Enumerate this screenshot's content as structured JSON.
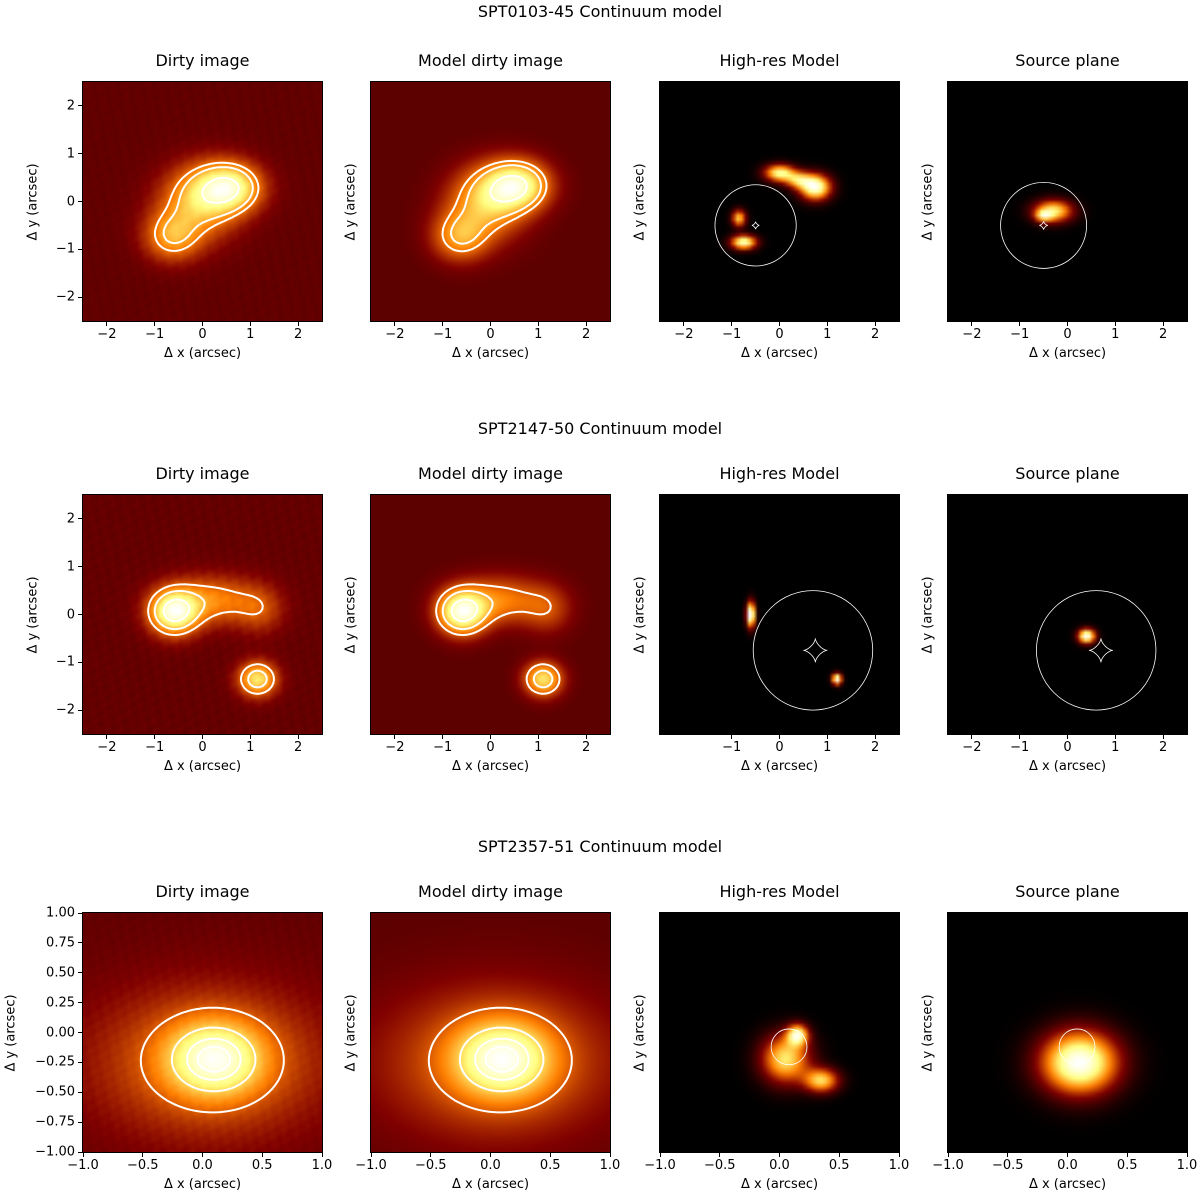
{
  "chart_data": [
    {
      "type": "heatmap",
      "title": "SPT0103-45 Continuum model",
      "panels": [
        {
          "title": "Dirty image",
          "xlabel": "Δ x (arcsec)",
          "ylabel": "Δ y (arcsec)",
          "xlim": [
            -2.5,
            2.5
          ],
          "ylim": [
            -2.5,
            2.5
          ],
          "xticks": [
            -2,
            -1,
            0,
            1,
            2
          ],
          "yticks": [
            -2,
            -1,
            0,
            1,
            2
          ],
          "blobs": [
            {
              "x": 0.6,
              "y": 0.3,
              "sx": 0.45,
              "sy": 0.35,
              "amp": 1.0
            },
            {
              "x": 0.05,
              "y": 0.2,
              "sx": 0.55,
              "sy": 0.45,
              "amp": 0.65
            },
            {
              "x": -0.65,
              "y": -0.75,
              "sx": 0.4,
              "sy": 0.35,
              "amp": 0.6
            },
            {
              "x": -0.2,
              "y": -0.3,
              "sx": 0.6,
              "sy": 0.5,
              "amp": 0.4
            }
          ],
          "contour_levels": [
            0.35,
            0.48,
            0.82
          ],
          "noise": true
        },
        {
          "title": "Model dirty image",
          "xlabel": "Δ x (arcsec)",
          "ylabel": "Δ y (arcsec)",
          "xlim": [
            -2.5,
            2.5
          ],
          "ylim": [
            -2.5,
            2.5
          ],
          "xticks": [
            -2,
            -1,
            0,
            1,
            2
          ],
          "yticks": [],
          "blobs": [
            {
              "x": 0.6,
              "y": 0.35,
              "sx": 0.45,
              "sy": 0.35,
              "amp": 1.0
            },
            {
              "x": 0.05,
              "y": 0.2,
              "sx": 0.55,
              "sy": 0.45,
              "amp": 0.65
            },
            {
              "x": -0.65,
              "y": -0.75,
              "sx": 0.4,
              "sy": 0.35,
              "amp": 0.6
            },
            {
              "x": -0.2,
              "y": -0.3,
              "sx": 0.6,
              "sy": 0.5,
              "amp": 0.4
            }
          ],
          "contour_levels": [
            0.35,
            0.48,
            0.82
          ],
          "noise": false
        },
        {
          "title": "High-res Model",
          "xlabel": "Δ x (arcsec)",
          "ylabel": "Δ y (arcsec)",
          "xlim": [
            -2.5,
            2.5
          ],
          "ylim": [
            -2.5,
            2.5
          ],
          "xticks": [
            -2,
            -1,
            0,
            1,
            2
          ],
          "yticks": [],
          "blobs": [
            {
              "x": 0.75,
              "y": 0.3,
              "sx": 0.22,
              "sy": 0.18,
              "amp": 1.0
            },
            {
              "x": 0.0,
              "y": 0.6,
              "sx": 0.22,
              "sy": 0.12,
              "amp": 0.85
            },
            {
              "x": 0.4,
              "y": 0.45,
              "sx": 0.2,
              "sy": 0.12,
              "amp": 0.6
            },
            {
              "x": -0.75,
              "y": -0.85,
              "sx": 0.18,
              "sy": 0.1,
              "amp": 0.95
            },
            {
              "x": -0.85,
              "y": -0.35,
              "sx": 0.1,
              "sy": 0.12,
              "amp": 0.7
            }
          ],
          "caustic": {
            "cx": -0.5,
            "cy": -0.5,
            "r": 0.85
          },
          "astroid": {
            "cx": -0.5,
            "cy": -0.5,
            "a": 0.08
          },
          "contour_levels": []
        },
        {
          "title": "Source plane",
          "xlabel": "Δ x (arcsec)",
          "ylabel": "Δ y (arcsec)",
          "xlim": [
            -2.5,
            2.5
          ],
          "ylim": [
            -2.5,
            2.5
          ],
          "xticks": [
            -2,
            -1,
            0,
            1,
            2
          ],
          "yticks": [],
          "blobs": [
            {
              "x": -0.3,
              "y": -0.2,
              "sx": 0.28,
              "sy": 0.16,
              "amp": 0.75
            },
            {
              "x": -0.5,
              "y": -0.3,
              "sx": 0.12,
              "sy": 0.08,
              "amp": 0.5
            }
          ],
          "caustic": {
            "cx": -0.5,
            "cy": -0.5,
            "r": 0.9
          },
          "astroid": {
            "cx": -0.5,
            "cy": -0.5,
            "a": 0.09
          },
          "contour_levels": []
        }
      ]
    },
    {
      "type": "heatmap",
      "title": "SPT2147-50 Continuum model",
      "panels": [
        {
          "title": "Dirty image",
          "xlabel": "Δ x (arcsec)",
          "ylabel": "Δ y (arcsec)",
          "xlim": [
            -2.5,
            2.5
          ],
          "ylim": [
            -2.5,
            2.5
          ],
          "xticks": [
            -2,
            -1,
            0,
            1,
            2
          ],
          "yticks": [
            -2,
            -1,
            0,
            1,
            2
          ],
          "blobs": [
            {
              "x": -0.6,
              "y": 0.05,
              "sx": 0.35,
              "sy": 0.32,
              "amp": 1.0
            },
            {
              "x": 0.2,
              "y": 0.3,
              "sx": 0.65,
              "sy": 0.35,
              "amp": 0.45
            },
            {
              "x": 1.2,
              "y": 0.1,
              "sx": 0.35,
              "sy": 0.35,
              "amp": 0.25
            },
            {
              "x": 1.15,
              "y": -1.35,
              "sx": 0.28,
              "sy": 0.25,
              "amp": 0.75
            }
          ],
          "contour_levels": [
            0.3,
            0.5,
            0.8
          ],
          "noise": true
        },
        {
          "title": "Model dirty image",
          "xlabel": "Δ x (arcsec)",
          "ylabel": "Δ y (arcsec)",
          "xlim": [
            -2.5,
            2.5
          ],
          "ylim": [
            -2.5,
            2.5
          ],
          "xticks": [
            -2,
            -1,
            0,
            1,
            2
          ],
          "yticks": [],
          "blobs": [
            {
              "x": -0.6,
              "y": 0.05,
              "sx": 0.35,
              "sy": 0.32,
              "amp": 1.0
            },
            {
              "x": 0.2,
              "y": 0.3,
              "sx": 0.65,
              "sy": 0.35,
              "amp": 0.45
            },
            {
              "x": 1.2,
              "y": 0.1,
              "sx": 0.35,
              "sy": 0.35,
              "amp": 0.25
            },
            {
              "x": 1.1,
              "y": -1.35,
              "sx": 0.28,
              "sy": 0.25,
              "amp": 0.75
            }
          ],
          "contour_levels": [
            0.3,
            0.5,
            0.8
          ],
          "noise": false
        },
        {
          "title": "High-res Model",
          "xlabel": "Δ x (arcsec)",
          "ylabel": "Δ y (arcsec)",
          "xlim": [
            -2.5,
            2.5
          ],
          "ylim": [
            -2.5,
            2.5
          ],
          "xticks": [
            -1,
            0,
            1,
            2
          ],
          "yticks": [],
          "blobs": [
            {
              "x": -0.6,
              "y": 0.0,
              "sx": 0.06,
              "sy": 0.18,
              "amp": 1.0
            },
            {
              "x": 1.2,
              "y": -1.35,
              "sx": 0.07,
              "sy": 0.08,
              "amp": 0.9
            }
          ],
          "caustic": {
            "cx": 0.7,
            "cy": -0.75,
            "r": 1.25
          },
          "astroid": {
            "cx": 0.75,
            "cy": -0.75,
            "a": 0.25
          },
          "contour_levels": []
        },
        {
          "title": "Source plane",
          "xlabel": "Δ x (arcsec)",
          "ylabel": "Δ y (arcsec)",
          "xlim": [
            -2.5,
            2.5
          ],
          "ylim": [
            -2.5,
            2.5
          ],
          "xticks": [
            -2,
            -1,
            0,
            1,
            2
          ],
          "yticks": [],
          "blobs": [
            {
              "x": 0.4,
              "y": -0.45,
              "sx": 0.12,
              "sy": 0.1,
              "amp": 1.0
            }
          ],
          "caustic": {
            "cx": 0.6,
            "cy": -0.75,
            "r": 1.25
          },
          "astroid": {
            "cx": 0.7,
            "cy": -0.75,
            "a": 0.25
          },
          "contour_levels": []
        }
      ]
    },
    {
      "type": "heatmap",
      "title": "SPT2357-51 Continuum model",
      "panels": [
        {
          "title": "Dirty image",
          "xlabel": "Δ x (arcsec)",
          "ylabel": "Δ y (arcsec)",
          "xlim": [
            -1.0,
            1.0
          ],
          "ylim": [
            -1.0,
            1.0
          ],
          "xticks": [
            -1.0,
            -0.5,
            0.0,
            0.5,
            1.0
          ],
          "xticklabels": [
            "−1.0",
            "−0.5",
            "0.0",
            "0.5",
            "1.0"
          ],
          "yticks": [
            1.0,
            0.75,
            0.5,
            0.25,
            0.0,
            -0.25,
            -0.5,
            -0.75,
            -1.0
          ],
          "yticklabels": [
            "1.00",
            "0.75",
            "0.50",
            "0.25",
            "0.00",
            "−0.25",
            "−0.50",
            "−0.75",
            "−1.00"
          ],
          "blobs": [
            {
              "x": 0.1,
              "y": -0.22,
              "sx": 0.28,
              "sy": 0.22,
              "amp": 1.0
            },
            {
              "x": 0.05,
              "y": -0.25,
              "sx": 0.7,
              "sy": 0.45,
              "amp": 0.5
            }
          ],
          "contour_levels": [
            0.3,
            0.6,
            0.8,
            0.92
          ],
          "noise": true
        },
        {
          "title": "Model dirty image",
          "xlabel": "Δ x (arcsec)",
          "ylabel": "Δ y (arcsec)",
          "xlim": [
            -1.0,
            1.0
          ],
          "ylim": [
            -1.0,
            1.0
          ],
          "xticks": [
            -1.0,
            -0.5,
            0.0,
            0.5,
            1.0
          ],
          "xticklabels": [
            "−1.0",
            "−0.5",
            "0.0",
            "0.5",
            "1.0"
          ],
          "yticks": [],
          "blobs": [
            {
              "x": 0.1,
              "y": -0.22,
              "sx": 0.28,
              "sy": 0.22,
              "amp": 1.0
            },
            {
              "x": 0.05,
              "y": -0.25,
              "sx": 0.7,
              "sy": 0.45,
              "amp": 0.5
            }
          ],
          "contour_levels": [
            0.3,
            0.6,
            0.8,
            0.92
          ],
          "noise": false
        },
        {
          "title": "High-res Model",
          "xlabel": "Δ x (arcsec)",
          "ylabel": "Δ y (arcsec)",
          "xlim": [
            -1.0,
            1.0
          ],
          "ylim": [
            -1.0,
            1.0
          ],
          "xticks": [
            -1.0,
            -0.5,
            0.0,
            0.5,
            1.0
          ],
          "xticklabels": [
            "−1.0",
            "−0.5",
            "0.0",
            "0.5",
            "1.0"
          ],
          "yticks": [],
          "blobs": [
            {
              "x": 0.05,
              "y": -0.22,
              "sx": 0.14,
              "sy": 0.14,
              "amp": 0.8
            },
            {
              "x": 0.35,
              "y": -0.4,
              "sx": 0.1,
              "sy": 0.07,
              "amp": 0.75
            },
            {
              "x": 0.15,
              "y": -0.02,
              "sx": 0.06,
              "sy": 0.06,
              "amp": 0.9
            }
          ],
          "caustic": {
            "cx": 0.08,
            "cy": -0.12,
            "r": 0.15
          },
          "contour_levels": []
        },
        {
          "title": "Source plane",
          "xlabel": "Δ x (arcsec)",
          "ylabel": "Δ y (arcsec)",
          "xlim": [
            -1.0,
            1.0
          ],
          "ylim": [
            -1.0,
            1.0
          ],
          "xticks": [
            -1.0,
            -0.5,
            0.0,
            0.5,
            1.0
          ],
          "xticklabels": [
            "−1.0",
            "−0.5",
            "0.0",
            "0.5",
            "1.0"
          ],
          "yticks": [],
          "blobs": [
            {
              "x": 0.1,
              "y": -0.25,
              "sx": 0.22,
              "sy": 0.18,
              "amp": 1.0
            }
          ],
          "caustic": {
            "cx": 0.08,
            "cy": -0.12,
            "r": 0.15
          },
          "contour_levels": []
        }
      ]
    }
  ]
}
